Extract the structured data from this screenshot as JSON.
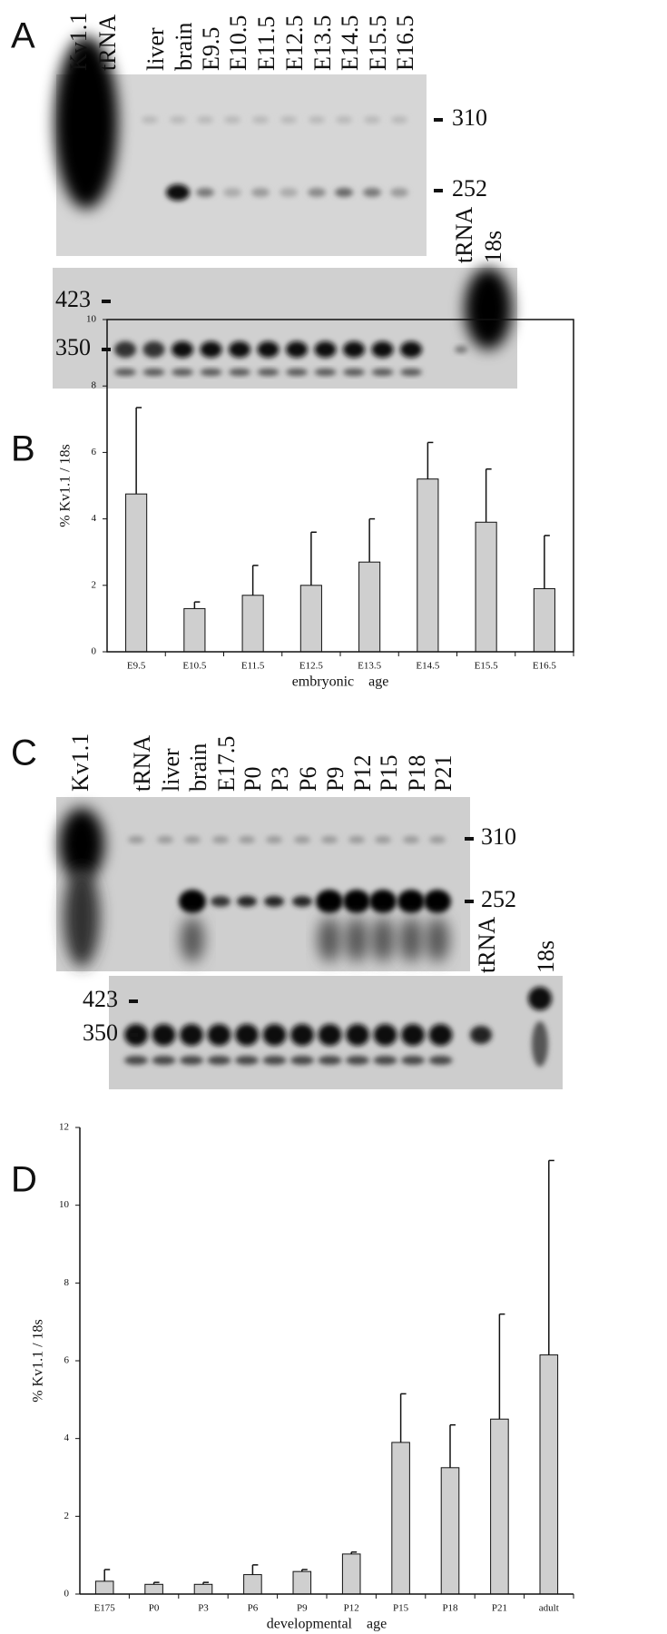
{
  "panels": [
    "A",
    "B",
    "C",
    "D"
  ],
  "gel_a": {
    "lanes": [
      "Kv1.1",
      "tRNA",
      "liver",
      "brain",
      "E9.5",
      "E10.5",
      "E11.5",
      "E12.5",
      "E13.5",
      "E14.5",
      "E15.5",
      "E16.5"
    ],
    "upper_markers": [
      "310",
      "252"
    ],
    "lower_lanes": [
      "tRNA",
      "18s"
    ],
    "lower_markers": [
      "423",
      "350"
    ]
  },
  "gel_c": {
    "lanes": [
      "Kv1.1",
      "tRNA",
      "liver",
      "brain",
      "E17.5",
      "P0",
      "P3",
      "P6",
      "P9",
      "P12",
      "P15",
      "P18",
      "P21"
    ],
    "upper_markers": [
      "310",
      "252"
    ],
    "lower_lanes": [
      "tRNA",
      "18s"
    ],
    "lower_markers": [
      "423",
      "350"
    ]
  },
  "chart_data": [
    {
      "type": "bar",
      "ylabel": "% Kv1.1 / 18s",
      "xlabel": "embryonic    age",
      "categories": [
        "E9.5",
        "E10.5",
        "E11.5",
        "E12.5",
        "E13.5",
        "E14.5",
        "E15.5",
        "E16.5"
      ],
      "values": [
        4.75,
        1.3,
        1.7,
        2.0,
        2.7,
        5.2,
        3.9,
        1.9
      ],
      "errors": [
        2.6,
        0.2,
        0.9,
        1.6,
        1.3,
        1.1,
        1.6,
        1.6
      ],
      "ylim": [
        0,
        10
      ],
      "yticks": [
        0,
        2,
        4,
        6,
        8,
        10
      ],
      "color": "#cfcfcf",
      "frame": true
    },
    {
      "type": "bar",
      "ylabel": "% Kv1.1 / 18s",
      "xlabel": "developmental    age",
      "categories": [
        "E175",
        "P0",
        "P3",
        "P6",
        "P9",
        "P12",
        "P15",
        "P18",
        "P21",
        "adult"
      ],
      "values": [
        0.33,
        0.25,
        0.25,
        0.5,
        0.58,
        1.03,
        3.9,
        3.25,
        4.5,
        6.15
      ],
      "errors": [
        0.3,
        0.05,
        0.05,
        0.25,
        0.05,
        0.05,
        1.25,
        1.1,
        2.7,
        5.0
      ],
      "ylim": [
        0,
        12
      ],
      "yticks": [
        0,
        2,
        4,
        6,
        8,
        10,
        12
      ],
      "color": "#cfcfcf",
      "frame": false
    }
  ]
}
